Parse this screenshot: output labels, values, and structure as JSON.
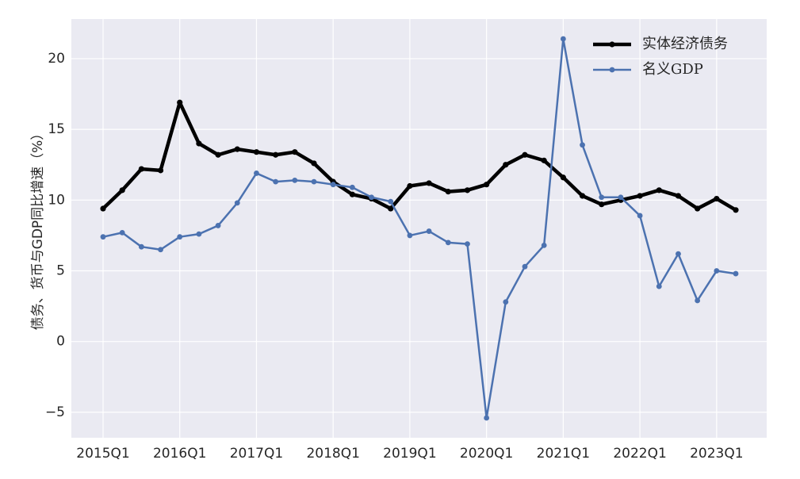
{
  "chart_data": {
    "type": "line",
    "ylabel": "债务、货币与GDP同比增速（%）",
    "xlabel": "",
    "ylim": [
      -6.8,
      22.8
    ],
    "yticks": [
      -5,
      0,
      5,
      10,
      15,
      20
    ],
    "ytick_labels": [
      "−5",
      "0",
      "5",
      "10",
      "15",
      "20"
    ],
    "x_tick_labels": [
      "2015Q1",
      "2016Q1",
      "2017Q1",
      "2018Q1",
      "2019Q1",
      "2020Q1",
      "2021Q1",
      "2022Q1",
      "2023Q1"
    ],
    "x_tick_every": 4,
    "x": [
      "2015Q1",
      "2015Q2",
      "2015Q3",
      "2015Q4",
      "2016Q1",
      "2016Q2",
      "2016Q3",
      "2016Q4",
      "2017Q1",
      "2017Q2",
      "2017Q3",
      "2017Q4",
      "2018Q1",
      "2018Q2",
      "2018Q3",
      "2018Q4",
      "2019Q1",
      "2019Q2",
      "2019Q3",
      "2019Q4",
      "2020Q1",
      "2020Q2",
      "2020Q3",
      "2020Q4",
      "2021Q1",
      "2021Q2",
      "2021Q3",
      "2021Q4",
      "2022Q1",
      "2022Q2",
      "2022Q3",
      "2022Q4",
      "2023Q1",
      "2023Q2"
    ],
    "series": [
      {
        "name": "实体经济债务",
        "color": "#000000",
        "values": [
          9.4,
          10.7,
          12.2,
          12.1,
          16.9,
          14.0,
          13.2,
          13.6,
          13.4,
          13.2,
          13.4,
          12.6,
          11.3,
          10.4,
          10.1,
          9.4,
          11.0,
          11.2,
          10.6,
          10.7,
          11.1,
          12.5,
          13.2,
          12.8,
          11.6,
          10.3,
          9.7,
          10.0,
          10.3,
          10.7,
          10.3,
          9.4,
          10.1,
          9.3
        ]
      },
      {
        "name": "名义GDP",
        "color": "#4c72b0",
        "values": [
          7.4,
          7.7,
          6.7,
          6.5,
          7.4,
          7.6,
          8.2,
          9.8,
          11.9,
          11.3,
          11.4,
          11.3,
          11.1,
          10.9,
          10.2,
          9.9,
          7.5,
          7.8,
          7.0,
          6.9,
          -5.4,
          2.8,
          5.3,
          6.8,
          21.4,
          13.9,
          10.2,
          10.2,
          8.9,
          3.9,
          6.2,
          2.9,
          5.0,
          4.8
        ]
      }
    ],
    "grid": true,
    "legend_position": "top-right",
    "background": "#eaeaf2"
  }
}
